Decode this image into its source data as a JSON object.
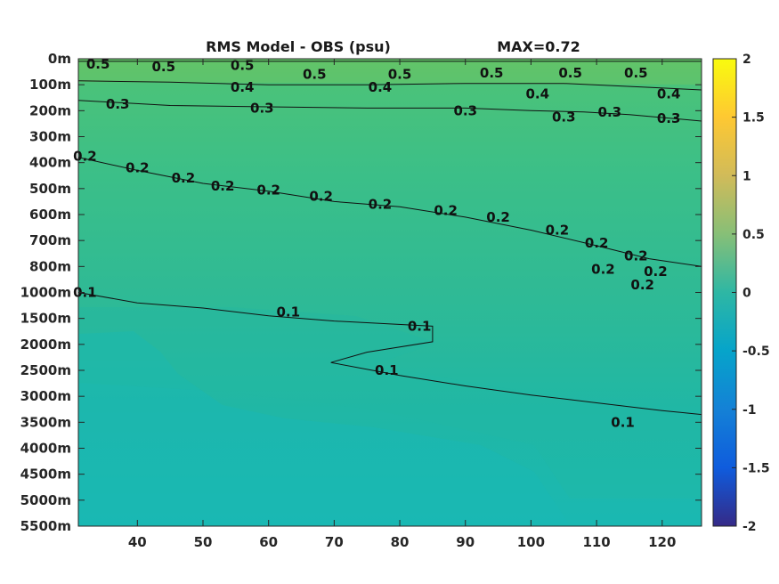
{
  "chart_data": {
    "type": "heatmap",
    "title": "RMS Model - OBS (psu)",
    "max_label": "MAX=0.72",
    "x": {
      "range": [
        31,
        126
      ],
      "ticks": [
        "40",
        "50",
        "60",
        "70",
        "80",
        "90",
        "100",
        "110",
        "120"
      ],
      "tick_values": [
        40,
        50,
        60,
        70,
        80,
        90,
        100,
        110,
        120
      ]
    },
    "y": {
      "ticks": [
        "0m",
        "100m",
        "200m",
        "300m",
        "400m",
        "500m",
        "600m",
        "700m",
        "800m",
        "1000m",
        "1500m",
        "2000m",
        "2500m",
        "3000m",
        "3500m",
        "4000m",
        "4500m",
        "5000m",
        "5500m"
      ]
    },
    "colorbar": {
      "range": [
        -2,
        2
      ],
      "ticks": [
        "2",
        "1.5",
        "1",
        "0.5",
        "0",
        "-0.5",
        "-1",
        "-1.5",
        "-2"
      ],
      "tick_values": [
        2,
        1.5,
        1,
        0.5,
        0,
        -0.5,
        -1,
        -1.5,
        -2
      ],
      "colormap": "parula"
    },
    "contour_levels": [
      0.1,
      0.2,
      0.3,
      0.4,
      0.5
    ],
    "max_value": 0.72,
    "contours": [
      {
        "level": 0.5,
        "points": [
          [
            31,
            0.1
          ],
          [
            40,
            0.1
          ],
          [
            50,
            0.1
          ],
          [
            60,
            0.1
          ],
          [
            70,
            0.1
          ],
          [
            80,
            0.1
          ],
          [
            90,
            0.1
          ],
          [
            100,
            0.1
          ],
          [
            110,
            0.1
          ],
          [
            120,
            0.1
          ],
          [
            126,
            0.1
          ]
        ]
      },
      {
        "level": 0.4,
        "points": [
          [
            31,
            0.85
          ],
          [
            45,
            0.9
          ],
          [
            60,
            1.0
          ],
          [
            75,
            1.0
          ],
          [
            90,
            0.95
          ],
          [
            105,
            0.95
          ],
          [
            118,
            1.1
          ],
          [
            126,
            1.2
          ]
        ]
      },
      {
        "level": 0.3,
        "points": [
          [
            31,
            1.6
          ],
          [
            45,
            1.8
          ],
          [
            60,
            1.85
          ],
          [
            75,
            1.9
          ],
          [
            90,
            1.9
          ],
          [
            100,
            2.0
          ],
          [
            108,
            2.05
          ],
          [
            115,
            2.15
          ],
          [
            126,
            2.4
          ]
        ]
      },
      {
        "level": 0.2,
        "points": [
          [
            31,
            3.8
          ],
          [
            40,
            4.3
          ],
          [
            50,
            4.8
          ],
          [
            60,
            5.1
          ],
          [
            70,
            5.5
          ],
          [
            80,
            5.7
          ],
          [
            90,
            6.1
          ],
          [
            100,
            6.6
          ],
          [
            110,
            7.2
          ],
          [
            118,
            7.7
          ],
          [
            126,
            8.0
          ]
        ]
      },
      {
        "level": 0.1,
        "points": [
          [
            31,
            9.0
          ],
          [
            40,
            9.4
          ],
          [
            50,
            9.6
          ],
          [
            60,
            9.9
          ],
          [
            70,
            10.1
          ],
          [
            85,
            10.3
          ],
          [
            85,
            10.9
          ],
          [
            75,
            11.3
          ],
          [
            69.5,
            11.7
          ],
          [
            80,
            12.2
          ],
          [
            90,
            12.6
          ],
          [
            100,
            12.95
          ],
          [
            110,
            13.25
          ],
          [
            120,
            13.55
          ],
          [
            126,
            13.7
          ]
        ]
      }
    ],
    "contour_labels": [
      {
        "text": "0.5",
        "x": 34,
        "y": 0.2
      },
      {
        "text": "0.5",
        "x": 44,
        "y": 0.3
      },
      {
        "text": "0.5",
        "x": 56,
        "y": 0.25
      },
      {
        "text": "0.5",
        "x": 67,
        "y": 0.6
      },
      {
        "text": "0.5",
        "x": 80,
        "y": 0.6
      },
      {
        "text": "0.5",
        "x": 94,
        "y": 0.55
      },
      {
        "text": "0.5",
        "x": 106,
        "y": 0.55
      },
      {
        "text": "0.5",
        "x": 116,
        "y": 0.55
      },
      {
        "text": "0.4",
        "x": 56,
        "y": 1.1
      },
      {
        "text": "0.4",
        "x": 77,
        "y": 1.1
      },
      {
        "text": "0.4",
        "x": 101,
        "y": 1.35
      },
      {
        "text": "0.4",
        "x": 121,
        "y": 1.35
      },
      {
        "text": "0.3",
        "x": 37,
        "y": 1.75
      },
      {
        "text": "0.3",
        "x": 59,
        "y": 1.9
      },
      {
        "text": "0.3",
        "x": 90,
        "y": 2.0
      },
      {
        "text": "0.3",
        "x": 105,
        "y": 2.25
      },
      {
        "text": "0.3",
        "x": 112,
        "y": 2.05
      },
      {
        "text": "0.3",
        "x": 121,
        "y": 2.3
      },
      {
        "text": "0.2",
        "x": 32,
        "y": 3.75
      },
      {
        "text": "0.2",
        "x": 40,
        "y": 4.2
      },
      {
        "text": "0.2",
        "x": 47,
        "y": 4.6
      },
      {
        "text": "0.2",
        "x": 53,
        "y": 4.9
      },
      {
        "text": "0.2",
        "x": 60,
        "y": 5.05
      },
      {
        "text": "0.2",
        "x": 68,
        "y": 5.3
      },
      {
        "text": "0.2",
        "x": 77,
        "y": 5.6
      },
      {
        "text": "0.2",
        "x": 87,
        "y": 5.85
      },
      {
        "text": "0.2",
        "x": 95,
        "y": 6.1
      },
      {
        "text": "0.2",
        "x": 104,
        "y": 6.6
      },
      {
        "text": "0.2",
        "x": 110,
        "y": 7.1
      },
      {
        "text": "0.2",
        "x": 116,
        "y": 7.6
      },
      {
        "text": "0.2",
        "x": 119,
        "y": 8.2
      },
      {
        "text": "0.2",
        "x": 111,
        "y": 8.1
      },
      {
        "text": "0.2",
        "x": 117,
        "y": 8.7
      },
      {
        "text": "0.1",
        "x": 32,
        "y": 9.0
      },
      {
        "text": "0.1",
        "x": 63,
        "y": 9.75
      },
      {
        "text": "0.1",
        "x": 83,
        "y": 10.3
      },
      {
        "text": "0.1",
        "x": 78,
        "y": 12.0
      },
      {
        "text": "0.1",
        "x": 114,
        "y": 14.0
      }
    ]
  }
}
